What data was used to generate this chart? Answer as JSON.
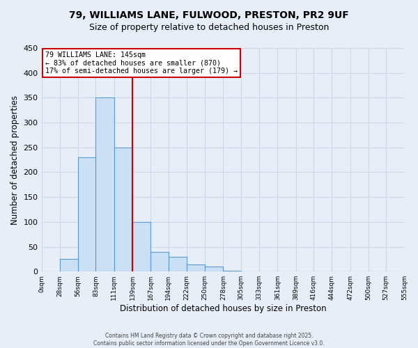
{
  "title_line1": "79, WILLIAMS LANE, FULWOOD, PRESTON, PR2 9UF",
  "title_line2": "Size of property relative to detached houses in Preston",
  "xlabel": "Distribution of detached houses by size in Preston",
  "ylabel": "Number of detached properties",
  "bar_values": [
    0,
    25,
    230,
    350,
    250,
    100,
    40,
    30,
    15,
    10,
    2,
    0,
    0,
    0,
    0,
    0,
    0,
    0,
    0,
    0
  ],
  "bin_edges": [
    0,
    28,
    56,
    83,
    111,
    139,
    167,
    194,
    222,
    250,
    278,
    305,
    333,
    361,
    389,
    416,
    444,
    472,
    500,
    527,
    555
  ],
  "bar_color": "#cce0f5",
  "bar_edge_color": "#5b9bd5",
  "vline_x": 139,
  "vline_color": "#cc0000",
  "ylim": [
    0,
    450
  ],
  "yticks": [
    0,
    50,
    100,
    150,
    200,
    250,
    300,
    350,
    400,
    450
  ],
  "xtick_labels": [
    "0sqm",
    "28sqm",
    "56sqm",
    "83sqm",
    "111sqm",
    "139sqm",
    "167sqm",
    "194sqm",
    "222sqm",
    "250sqm",
    "278sqm",
    "305sqm",
    "333sqm",
    "361sqm",
    "389sqm",
    "416sqm",
    "444sqm",
    "472sqm",
    "500sqm",
    "527sqm",
    "555sqm"
  ],
  "annotation_title": "79 WILLIAMS LANE: 145sqm",
  "annotation_line2": "← 83% of detached houses are smaller (870)",
  "annotation_line3": "17% of semi-detached houses are larger (179) →",
  "annotation_box_color": "#ffffff",
  "annotation_box_edge": "#cc0000",
  "grid_color": "#ccd8e8",
  "bg_color": "#e8eef8",
  "footer_line1": "Contains HM Land Registry data © Crown copyright and database right 2025.",
  "footer_line2": "Contains public sector information licensed under the Open Government Licence v3.0."
}
